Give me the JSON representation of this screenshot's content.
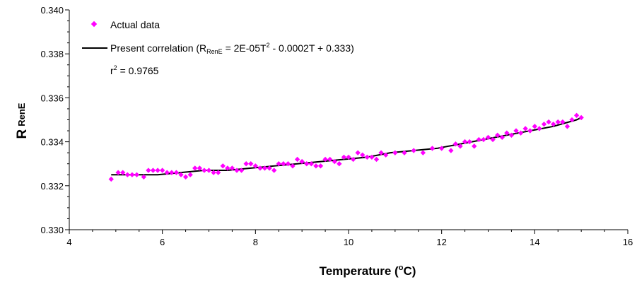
{
  "chart_data": {
    "type": "scatter",
    "xlabel": {
      "main": "Temperature (",
      "sup": "o",
      "unit": "C)"
    },
    "ylabel": {
      "main": "R",
      "sub": "RenE"
    },
    "xlim": [
      4,
      16
    ],
    "ylim": [
      0.33,
      0.34
    ],
    "x_ticks": [
      "4",
      "6",
      "8",
      "10",
      "12",
      "14",
      "16"
    ],
    "y_ticks": [
      "0.330",
      "0.332",
      "0.334",
      "0.336",
      "0.338",
      "0.340"
    ],
    "grid": false,
    "legend": {
      "placement": "top-left",
      "actual_label": "Actual data",
      "fit_label_prefix": "Present correlation (R",
      "fit_label_sub": "RenE",
      "fit_label_mid": " = 2E-05T",
      "fit_label_sup": "2",
      "fit_label_end": " - 0.0002T + 0.333)",
      "r2_prefix": "r",
      "r2_sup": "2",
      "r2_value": " = 0.9765"
    },
    "colors": {
      "points": "#ff00ff",
      "line": "#000000"
    },
    "series": [
      {
        "name": "Actual data",
        "kind": "points",
        "x": [
          4.9,
          5.05,
          5.15,
          5.25,
          5.35,
          5.45,
          5.6,
          5.7,
          5.8,
          5.9,
          6.0,
          6.1,
          6.2,
          6.3,
          6.4,
          6.5,
          6.6,
          6.7,
          6.8,
          6.9,
          7.0,
          7.1,
          7.2,
          7.3,
          7.4,
          7.5,
          7.6,
          7.7,
          7.8,
          7.9,
          8.0,
          8.1,
          8.2,
          8.3,
          8.4,
          8.5,
          8.6,
          8.7,
          8.8,
          8.9,
          9.0,
          9.1,
          9.2,
          9.3,
          9.4,
          9.5,
          9.6,
          9.7,
          9.8,
          9.9,
          10.0,
          10.1,
          10.2,
          10.3,
          10.4,
          10.5,
          10.6,
          10.7,
          10.8,
          11.0,
          11.2,
          11.4,
          11.6,
          11.8,
          12.0,
          12.2,
          12.3,
          12.4,
          12.5,
          12.6,
          12.7,
          12.8,
          12.9,
          13.0,
          13.1,
          13.2,
          13.3,
          13.4,
          13.5,
          13.6,
          13.7,
          13.8,
          13.9,
          14.0,
          14.1,
          14.2,
          14.3,
          14.4,
          14.5,
          14.6,
          14.7,
          14.8,
          14.9,
          15.0
        ],
        "y": [
          0.3323,
          0.3326,
          0.3326,
          0.3325,
          0.3325,
          0.3325,
          0.3324,
          0.3327,
          0.3327,
          0.3327,
          0.3327,
          0.3326,
          0.3326,
          0.3326,
          0.3325,
          0.3324,
          0.3325,
          0.3328,
          0.3328,
          0.3327,
          0.3327,
          0.3326,
          0.3326,
          0.3329,
          0.3328,
          0.3328,
          0.3327,
          0.3327,
          0.333,
          0.333,
          0.3329,
          0.3328,
          0.3328,
          0.3328,
          0.3327,
          0.333,
          0.333,
          0.333,
          0.3329,
          0.3332,
          0.3331,
          0.333,
          0.333,
          0.3329,
          0.3329,
          0.3332,
          0.3332,
          0.3331,
          0.333,
          0.3333,
          0.3333,
          0.3332,
          0.3335,
          0.3334,
          0.3333,
          0.3333,
          0.3332,
          0.3335,
          0.3334,
          0.3335,
          0.3335,
          0.3336,
          0.3335,
          0.3337,
          0.3337,
          0.3336,
          0.3339,
          0.3338,
          0.334,
          0.334,
          0.3338,
          0.3341,
          0.3341,
          0.3342,
          0.3341,
          0.3343,
          0.3342,
          0.3344,
          0.3343,
          0.3345,
          0.3344,
          0.3346,
          0.3345,
          0.3347,
          0.3346,
          0.3348,
          0.3349,
          0.3348,
          0.3349,
          0.3349,
          0.3347,
          0.335,
          0.3352,
          0.3351
        ]
      },
      {
        "name": "Present correlation",
        "kind": "line",
        "x": [
          4.9,
          5.4,
          5.9,
          6.4,
          6.9,
          7.4,
          7.9,
          8.4,
          8.9,
          9.4,
          9.9,
          10.4,
          10.9,
          11.4,
          11.9,
          12.4,
          12.9,
          13.4,
          13.9,
          14.4,
          14.9,
          15.0
        ],
        "y": [
          0.3325,
          0.3325,
          0.3325,
          0.3326,
          0.3327,
          0.3327,
          0.3328,
          0.3329,
          0.333,
          0.3331,
          0.3332,
          0.3333,
          0.3335,
          0.3336,
          0.3337,
          0.3339,
          0.3341,
          0.3343,
          0.3345,
          0.3347,
          0.335,
          0.3351
        ]
      }
    ]
  }
}
